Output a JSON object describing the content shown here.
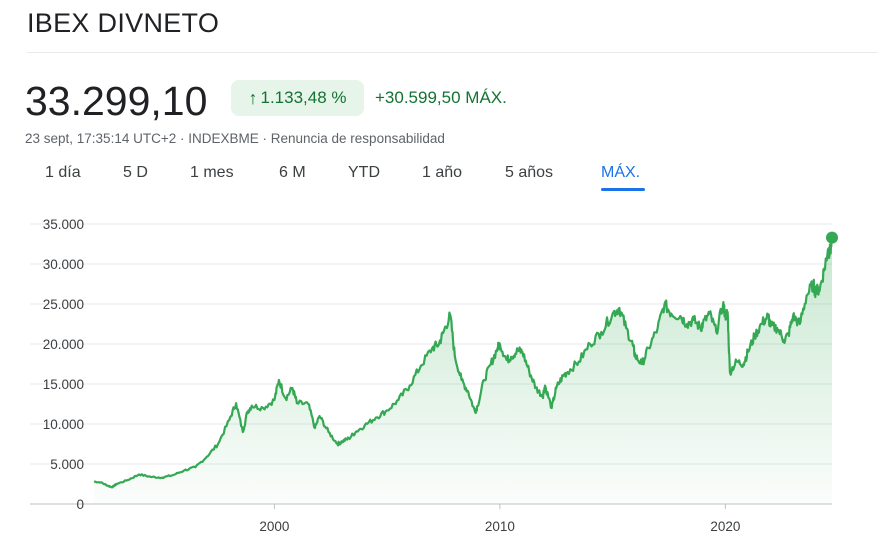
{
  "header": {
    "title": "IBEX DIVNETO"
  },
  "quote": {
    "price": "33.299,10",
    "change_pct": "1.133,48 %",
    "change_arrow": "arrow-up-icon",
    "change_abs": "+30.599,50 MÁX.",
    "meta_time": "23 sept, 17:35:14 UTC+2",
    "meta_sep1": " · ",
    "meta_exchange": "INDEXBME",
    "meta_sep2": " · ",
    "meta_disclaimer": "Renuncia de responsabilidad"
  },
  "tabs": [
    {
      "label": "1 día"
    },
    {
      "label": "5 D"
    },
    {
      "label": "1 mes"
    },
    {
      "label": "6 M"
    },
    {
      "label": "YTD"
    },
    {
      "label": "1 año"
    },
    {
      "label": "5 años"
    },
    {
      "label": "MÁX."
    }
  ],
  "active_tab": "MÁX.",
  "colors": {
    "positive": "#137333",
    "positive_bg": "#e6f4ea",
    "line": "#34a853",
    "accent": "#1a73e8"
  },
  "chart_data": {
    "type": "area",
    "grid": true,
    "ylim": [
      0,
      35000
    ],
    "xlim": [
      1992.0,
      2024.73
    ],
    "y_ticks": [
      {
        "value": 0,
        "label": "0"
      },
      {
        "value": 5000,
        "label": "5.000"
      },
      {
        "value": 10000,
        "label": "10.000"
      },
      {
        "value": 15000,
        "label": "15.000"
      },
      {
        "value": 20000,
        "label": "20.000"
      },
      {
        "value": 25000,
        "label": "25.000"
      },
      {
        "value": 30000,
        "label": "30.000"
      },
      {
        "value": 35000,
        "label": "35.000"
      }
    ],
    "x_ticks": [
      {
        "value": 2000,
        "label": "2000"
      },
      {
        "value": 2010,
        "label": "2010"
      },
      {
        "value": 2020,
        "label": "2020"
      }
    ],
    "x": [
      1992.0,
      1992.3,
      1992.6,
      1992.8,
      1993.0,
      1993.5,
      1994.0,
      1994.5,
      1995.0,
      1995.5,
      1996.0,
      1996.5,
      1997.0,
      1997.5,
      1998.0,
      1998.3,
      1998.6,
      1998.8,
      1999.0,
      1999.5,
      2000.0,
      2000.2,
      2000.5,
      2000.8,
      2001.0,
      2001.5,
      2001.8,
      2002.0,
      2002.4,
      2002.8,
      2003.0,
      2003.3,
      2003.6,
      2004.0,
      2004.5,
      2005.0,
      2005.5,
      2006.0,
      2006.5,
      2007.0,
      2007.3,
      2007.5,
      2007.8,
      2008.0,
      2008.3,
      2008.6,
      2008.9,
      2009.0,
      2009.3,
      2009.6,
      2009.9,
      2010.0,
      2010.3,
      2010.5,
      2010.8,
      2011.0,
      2011.3,
      2011.6,
      2011.9,
      2012.0,
      2012.3,
      2012.5,
      2012.8,
      2013.0,
      2013.5,
      2014.0,
      2014.5,
      2015.0,
      2015.3,
      2015.6,
      2015.9,
      2016.0,
      2016.3,
      2016.6,
      2017.0,
      2017.3,
      2017.6,
      2018.0,
      2018.3,
      2018.6,
      2018.9,
      2019.0,
      2019.3,
      2019.6,
      2019.9,
      2020.0,
      2020.1,
      2020.2,
      2020.5,
      2020.8,
      2021.0,
      2021.3,
      2021.6,
      2021.9,
      2022.0,
      2022.3,
      2022.6,
      2022.8,
      2023.0,
      2023.3,
      2023.6,
      2023.9,
      2024.0,
      2024.2,
      2024.4,
      2024.55,
      2024.65,
      2024.73
    ],
    "series": [
      {
        "values": [
          2800,
          2700,
          2300,
          2100,
          2500,
          3000,
          3700,
          3400,
          3300,
          3600,
          4200,
          4600,
          5900,
          7500,
          10500,
          12600,
          9000,
          11500,
          12300,
          12000,
          13000,
          15500,
          13200,
          14500,
          12600,
          12500,
          9500,
          11000,
          9000,
          7500,
          7800,
          8200,
          9000,
          9800,
          10800,
          11700,
          13000,
          14800,
          17300,
          19500,
          20000,
          21500,
          23600,
          18500,
          15500,
          14000,
          11500,
          12200,
          15500,
          17500,
          19500,
          20000,
          18000,
          18400,
          19200,
          19000,
          16600,
          14500,
          13500,
          14800,
          12000,
          14500,
          16000,
          16500,
          17800,
          20000,
          21500,
          23800,
          24500,
          22000,
          19800,
          18500,
          17500,
          19500,
          22000,
          25000,
          23800,
          23500,
          22500,
          23000,
          22000,
          22500,
          23800,
          21500,
          25000,
          23500,
          24000,
          16500,
          17800,
          17500,
          19000,
          21000,
          22500,
          23500,
          22200,
          22000,
          20500,
          21200,
          23500,
          22500,
          26000,
          27500,
          26500,
          27000,
          29500,
          31800,
          31500,
          33299
        ]
      }
    ]
  }
}
